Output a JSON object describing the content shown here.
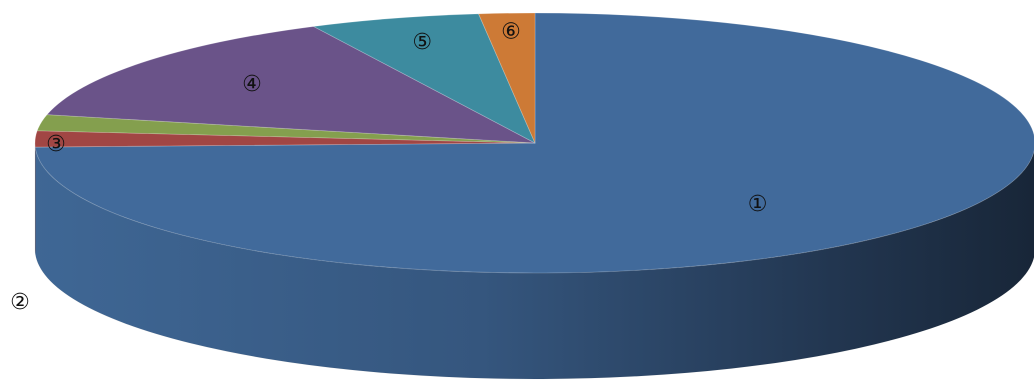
{
  "chart_data": {
    "type": "pie",
    "style": "3d",
    "title": "",
    "slices": [
      {
        "label": "①",
        "value": 74.5,
        "color": "#416A9B"
      },
      {
        "label": "②",
        "value": 2.0,
        "color": "#A14644"
      },
      {
        "label": "③",
        "value": 2.0,
        "color": "#849F4E"
      },
      {
        "label": "④",
        "value": 14.2,
        "color": "#6A5389"
      },
      {
        "label": "⑤",
        "value": 5.5,
        "color": "#3D8B9F"
      },
      {
        "label": "⑥",
        "value": 1.8,
        "color": "#CD7A36"
      }
    ]
  }
}
